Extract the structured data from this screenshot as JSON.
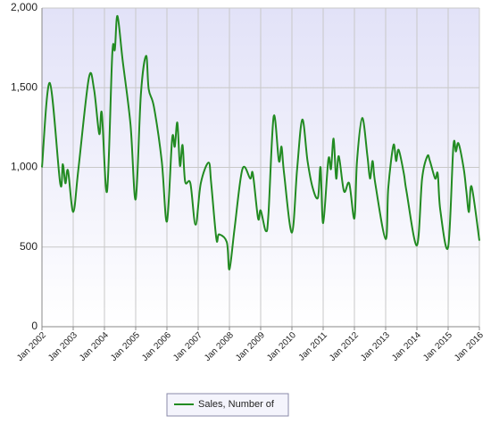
{
  "chart_data": {
    "type": "line",
    "x": [
      "2002-01",
      "2002-04",
      "2002-08",
      "2002-09",
      "2002-10",
      "2002-11",
      "2003-01",
      "2003-03",
      "2003-07",
      "2003-09",
      "2003-11",
      "2003-12",
      "2004-02",
      "2004-04",
      "2004-05",
      "2004-06",
      "2004-08",
      "2004-11",
      "2005-01",
      "2005-03",
      "2005-05",
      "2005-06",
      "2005-08",
      "2005-11",
      "2006-01",
      "2006-03",
      "2006-04",
      "2006-05",
      "2006-06",
      "2006-07",
      "2006-08",
      "2006-10",
      "2006-12",
      "2007-02",
      "2007-05",
      "2007-06",
      "2007-08",
      "2007-09",
      "2007-12",
      "2008-01",
      "2008-03",
      "2008-06",
      "2008-09",
      "2008-10",
      "2008-12",
      "2009-01",
      "2009-03",
      "2009-04",
      "2009-06",
      "2009-08",
      "2009-09",
      "2009-10",
      "2010-01",
      "2010-03",
      "2010-05",
      "2010-07",
      "2010-09",
      "2010-11",
      "2010-12",
      "2011-01",
      "2011-03",
      "2011-04",
      "2011-05",
      "2011-06",
      "2011-07",
      "2011-09",
      "2011-11",
      "2012-01",
      "2012-02",
      "2012-04",
      "2012-06",
      "2012-07",
      "2012-08",
      "2012-09",
      "2013-01",
      "2013-02",
      "2013-04",
      "2013-05",
      "2013-06",
      "2013-08",
      "2013-09",
      "2014-01",
      "2014-03",
      "2014-05",
      "2014-06",
      "2014-08",
      "2014-09",
      "2014-10",
      "2015-01",
      "2015-03",
      "2015-04",
      "2015-05",
      "2015-07",
      "2015-08",
      "2015-09",
      "2015-10",
      "2016-01"
    ],
    "series": [
      {
        "name": "Sales, Number of",
        "color": "#228b22",
        "values": [
          1000,
          1530,
          900,
          1020,
          900,
          980,
          720,
          990,
          1560,
          1490,
          1210,
          1340,
          850,
          1710,
          1740,
          1950,
          1670,
          1270,
          800,
          1460,
          1700,
          1490,
          1380,
          1040,
          660,
          1180,
          1130,
          1280,
          1010,
          1140,
          910,
          900,
          640,
          900,
          1030,
          900,
          550,
          580,
          530,
          360,
          620,
          990,
          930,
          960,
          680,
          730,
          600,
          710,
          1320,
          1040,
          1130,
          960,
          590,
          990,
          1300,
          1040,
          870,
          810,
          1000,
          650,
          1050,
          990,
          1180,
          930,
          1070,
          850,
          900,
          680,
          1040,
          1310,
          1070,
          930,
          1040,
          900,
          550,
          870,
          1140,
          1040,
          1110,
          960,
          850,
          510,
          930,
          1070,
          1040,
          930,
          960,
          730,
          500,
          1130,
          1100,
          1150,
          990,
          850,
          720,
          880,
          540
        ]
      }
    ],
    "xlim": [
      "2002-01",
      "2016-01"
    ],
    "xticks": [
      {
        "value": "2002-01",
        "label": "Jan 2002"
      },
      {
        "value": "2003-01",
        "label": "Jan 2003"
      },
      {
        "value": "2004-01",
        "label": "Jan 2004"
      },
      {
        "value": "2005-01",
        "label": "Jan 2005"
      },
      {
        "value": "2006-01",
        "label": "Jan 2006"
      },
      {
        "value": "2007-01",
        "label": "Jan 2007"
      },
      {
        "value": "2008-01",
        "label": "Jan 2008"
      },
      {
        "value": "2009-01",
        "label": "Jan 2009"
      },
      {
        "value": "2010-01",
        "label": "Jan 2010"
      },
      {
        "value": "2011-01",
        "label": "Jan 2011"
      },
      {
        "value": "2012-01",
        "label": "Jan 2012"
      },
      {
        "value": "2013-01",
        "label": "Jan 2013"
      },
      {
        "value": "2014-01",
        "label": "Jan 2014"
      },
      {
        "value": "2015-01",
        "label": "Jan 2015"
      },
      {
        "value": "2016-01",
        "label": "Jan 2016"
      }
    ],
    "ylim": [
      0,
      2000
    ],
    "yticks": [
      0,
      500,
      {
        "value": 1000,
        "label": "1,000"
      },
      {
        "value": 1500,
        "label": "1,500"
      },
      {
        "value": 2000,
        "label": "2,000"
      }
    ],
    "grid": true,
    "legend": "bottom"
  }
}
